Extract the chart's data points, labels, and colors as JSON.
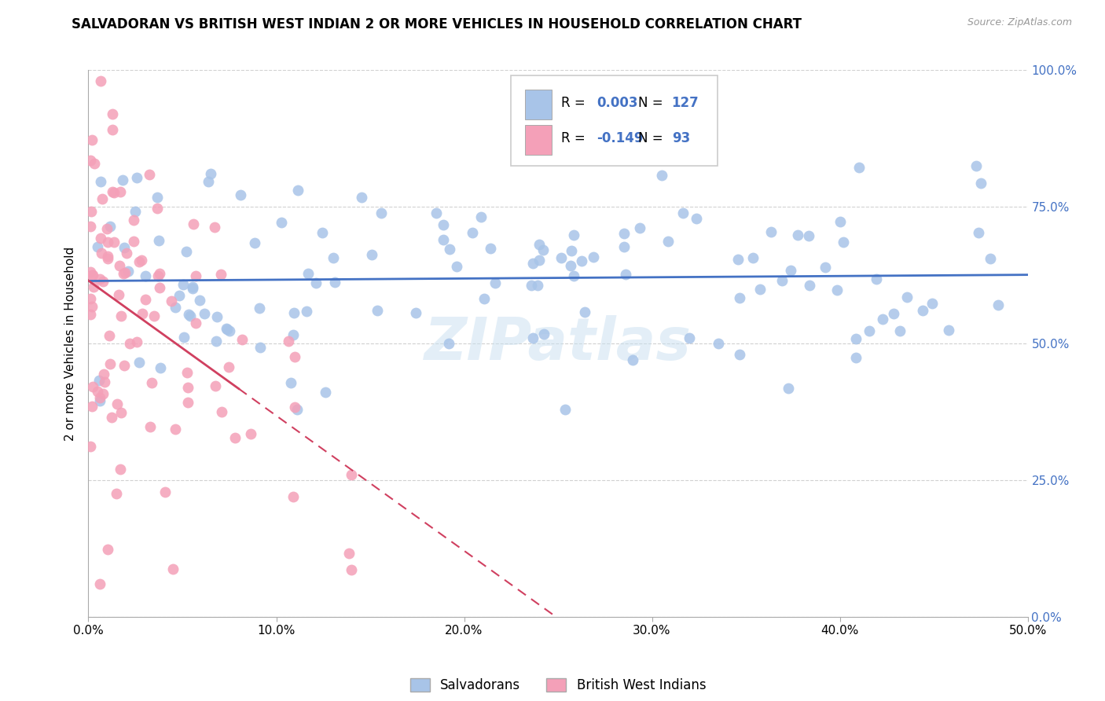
{
  "title": "SALVADORAN VS BRITISH WEST INDIAN 2 OR MORE VEHICLES IN HOUSEHOLD CORRELATION CHART",
  "source": "Source: ZipAtlas.com",
  "ylabel": "2 or more Vehicles in Household",
  "xlim": [
    0.0,
    0.5
  ],
  "ylim": [
    0.0,
    1.0
  ],
  "xtick_labels": [
    "0.0%",
    "10.0%",
    "20.0%",
    "30.0%",
    "40.0%",
    "50.0%"
  ],
  "xtick_vals": [
    0.0,
    0.1,
    0.2,
    0.3,
    0.4,
    0.5
  ],
  "ytick_labels": [
    "0.0%",
    "25.0%",
    "50.0%",
    "75.0%",
    "100.0%"
  ],
  "ytick_vals": [
    0.0,
    0.25,
    0.5,
    0.75,
    1.0
  ],
  "legend_label1": "Salvadorans",
  "legend_label2": "British West Indians",
  "R1": 0.003,
  "N1": 127,
  "R2": -0.149,
  "N2": 93,
  "color1": "#a8c4e8",
  "color2": "#f4a0b8",
  "line1_color": "#4472c4",
  "line2_color": "#d04060",
  "background_color": "#ffffff",
  "grid_color": "#cccccc",
  "watermark": "ZIPatlas"
}
